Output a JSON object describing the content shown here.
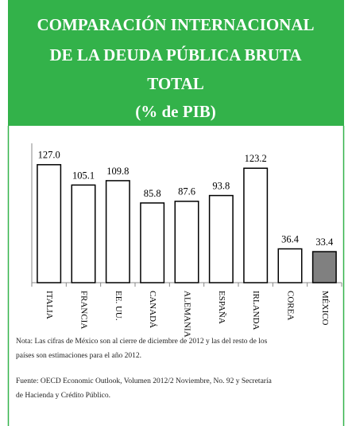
{
  "chart_data": {
    "type": "bar",
    "title": [
      "COMPARACIÓN INTERNACIONAL",
      "DE LA DEUDA PÚBLICA BRUTA",
      "TOTAL"
    ],
    "subtitle": "(% de PIB)",
    "categories": [
      "ITALIA",
      "FRANCIA",
      "EE. UU.",
      "CANADÁ",
      "ALEMANIA",
      "ESPAÑA",
      "IRLANDA",
      "COREA",
      "MÉXICO"
    ],
    "values": [
      127.0,
      105.1,
      109.8,
      85.8,
      87.6,
      93.8,
      123.2,
      36.4,
      33.4
    ],
    "value_labels": [
      "127.0",
      "105.1",
      "109.8",
      "85.8",
      "87.6",
      "93.8",
      "123.2",
      "36.4",
      "33.4"
    ],
    "colors": [
      "#ffffff",
      "#ffffff",
      "#ffffff",
      "#ffffff",
      "#ffffff",
      "#ffffff",
      "#ffffff",
      "#ffffff",
      "#808080"
    ],
    "ylim": [
      0,
      150
    ],
    "notes": [
      "Nota: Las cifras de México son al cierre de diciembre de 2012 y las del resto de los",
      "países son estimaciones para el año 2012.",
      "Fuente: OECD Economic Outlook, Volumen 2012/2 Noviembre, No. 92 y Secretaría",
      "de Hacienda y Crédito Público."
    ]
  }
}
